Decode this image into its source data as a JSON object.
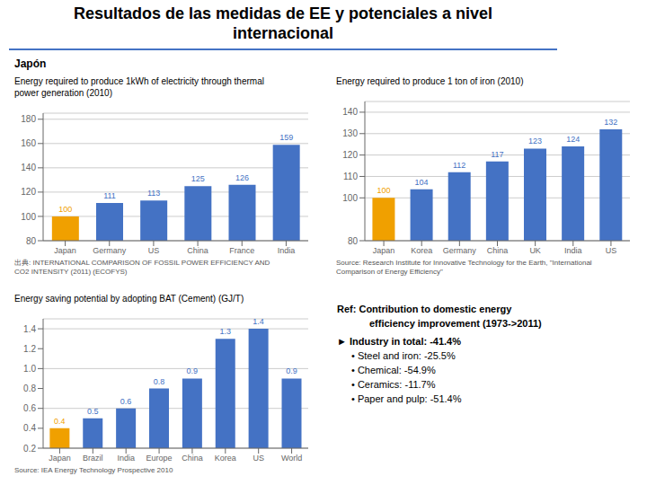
{
  "title": "Resultados de las medidas de EE y potenciales a nivel\ninternacional",
  "subtitle": "Japón",
  "chart_data": [
    {
      "type": "bar",
      "title": "Energy required to produce 1kWh of electricity through thermal\npower generation (2010)",
      "categories": [
        "Japan",
        "Germany",
        "US",
        "China",
        "France",
        "India"
      ],
      "values": [
        100,
        111,
        113,
        125,
        126,
        159
      ],
      "colors": [
        "#f0a000",
        "#4472c4",
        "#4472c4",
        "#4472c4",
        "#4472c4",
        "#4472c4"
      ],
      "ylim": [
        80,
        185
      ],
      "yticks": [
        80,
        100,
        120,
        140,
        160,
        180
      ],
      "grid": true,
      "data_labels": true,
      "annotations": [
        "出典: INTERNATIONAL COMPARISON OF FOSSIL POWER EFFICIENCY AND\nCO2 INTENSITY (2011) (ECOFYS)"
      ]
    },
    {
      "type": "bar",
      "title": "Energy required to produce 1 ton of iron (2010)",
      "categories": [
        "Japan",
        "Korea",
        "Germany",
        "China",
        "UK",
        "India",
        "US"
      ],
      "values": [
        100,
        104,
        112,
        117,
        123,
        124,
        132
      ],
      "colors": [
        "#f0a000",
        "#4472c4",
        "#4472c4",
        "#4472c4",
        "#4472c4",
        "#4472c4",
        "#4472c4"
      ],
      "ylim": [
        80,
        145
      ],
      "yticks": [
        80,
        100,
        110,
        120,
        130,
        140
      ],
      "grid": true,
      "data_labels": true,
      "annotations": [
        "Source: Research Institute for Innovative Technology for the Earth, \"International\nComparison of Energy Efficiency\""
      ]
    },
    {
      "type": "bar",
      "title": "Energy saving potential by adopting BAT (Cement) (GJ/T)",
      "categories": [
        "Japan",
        "Brazil",
        "India",
        "Europe",
        "China",
        "Korea",
        "US",
        "World"
      ],
      "values": [
        0.4,
        0.5,
        0.6,
        0.8,
        0.9,
        1.3,
        1.4,
        0.9
      ],
      "colors": [
        "#f0a000",
        "#4472c4",
        "#4472c4",
        "#4472c4",
        "#4472c4",
        "#4472c4",
        "#4472c4",
        "#4472c4"
      ],
      "ylim": [
        0.2,
        1.5
      ],
      "yticks": [
        0.2,
        0.4,
        0.6,
        0.8,
        {
          "value": 1.0,
          "label": "1.0"
        },
        1.2,
        1.4
      ],
      "grid": true,
      "data_labels": true,
      "annotations": [
        "Source: IEA Energy Technology Prospective 2010"
      ]
    }
  ],
  "annotations": [
    "Ref: Contribution to domestic energy",
    "efficiency improvement (1973->2011)",
    "► Industry in total: -41.4%",
    "• Steel and iron: -25.5%",
    "• Chemical: -54.9%",
    "• Ceramics: -11.7%",
    "• Paper and pulp: -51.4%"
  ]
}
